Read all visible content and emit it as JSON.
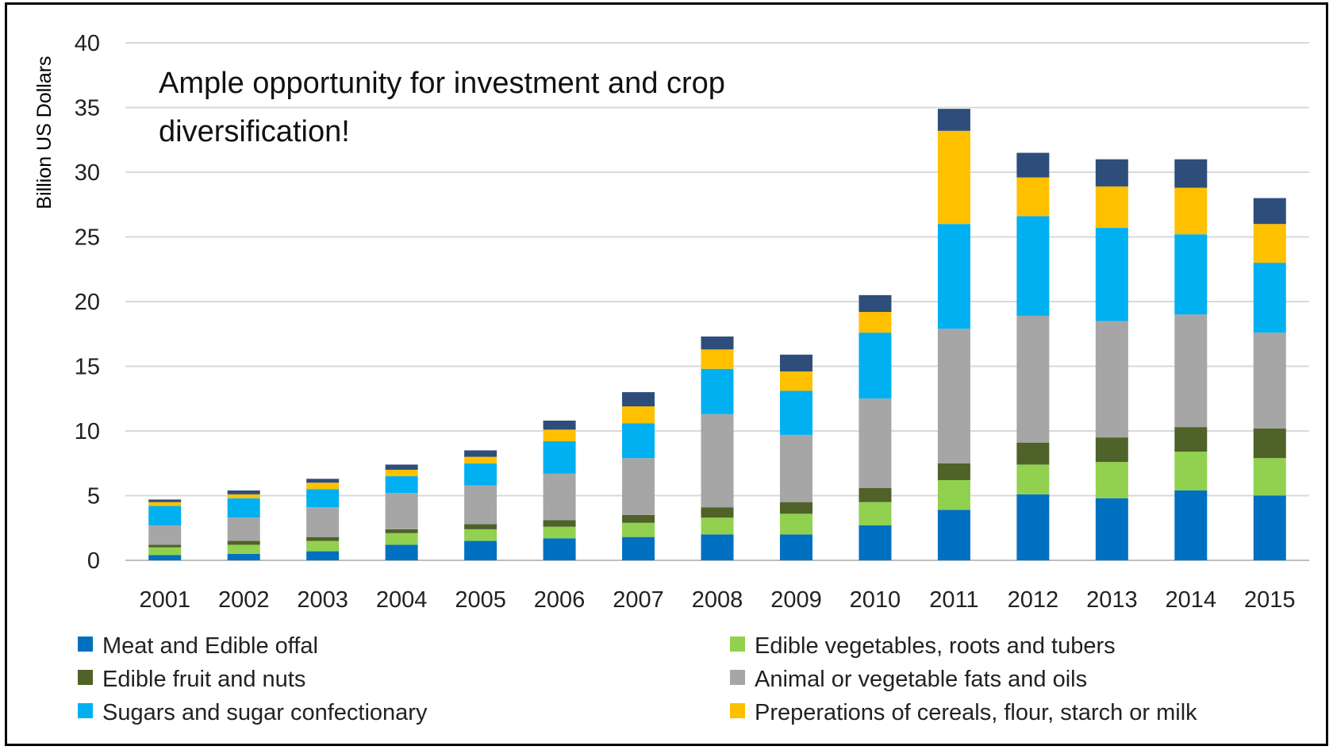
{
  "chart_data": {
    "type": "bar",
    "stacked": true,
    "ylabel": "Billion US Dollars",
    "ylim": [
      0,
      40
    ],
    "yticks": [
      "0",
      "5",
      "10",
      "15",
      "20",
      "25",
      "30",
      "35",
      "40"
    ],
    "grid": true,
    "legend_position": "bottom",
    "annotation": [
      "Ample opportunity for investment and crop",
      "diversification!"
    ],
    "categories": [
      "2001",
      "2002",
      "2003",
      "2004",
      "2005",
      "2006",
      "2007",
      "2008",
      "2009",
      "2010",
      "2011",
      "2012",
      "2013",
      "2014",
      "2015"
    ],
    "series": [
      {
        "name": "Meat and Edible offal",
        "color": "#0070C0",
        "values": [
          0.4,
          0.5,
          0.7,
          1.2,
          1.5,
          1.7,
          1.8,
          2.0,
          2.0,
          2.7,
          3.9,
          5.1,
          4.8,
          5.4,
          5.0
        ]
      },
      {
        "name": "Edible vegetables, roots and tubers",
        "color": "#92D050",
        "values": [
          0.6,
          0.7,
          0.8,
          0.9,
          0.9,
          0.9,
          1.1,
          1.3,
          1.6,
          1.8,
          2.3,
          2.3,
          2.8,
          3.0,
          2.9
        ]
      },
      {
        "name": "Edible fruit and nuts",
        "color": "#4F6228",
        "values": [
          0.2,
          0.3,
          0.3,
          0.3,
          0.4,
          0.5,
          0.6,
          0.8,
          0.9,
          1.1,
          1.3,
          1.7,
          1.9,
          1.9,
          2.3
        ]
      },
      {
        "name": "Animal or vegetable fats and oils",
        "color": "#A6A6A6",
        "values": [
          1.5,
          1.8,
          2.3,
          2.8,
          3.0,
          3.6,
          4.4,
          7.2,
          5.2,
          6.9,
          10.4,
          9.8,
          9.0,
          8.7,
          7.4
        ]
      },
      {
        "name": "Sugars and sugar confectionary",
        "color": "#00B0F0",
        "values": [
          1.5,
          1.5,
          1.4,
          1.3,
          1.7,
          2.5,
          2.7,
          3.5,
          3.4,
          5.1,
          8.1,
          7.7,
          7.2,
          6.2,
          5.4
        ]
      },
      {
        "name": "Preperations of cereals, flour, starch or milk",
        "color": "#FFC000",
        "values": [
          0.3,
          0.3,
          0.5,
          0.5,
          0.5,
          0.9,
          1.3,
          1.5,
          1.5,
          1.6,
          7.2,
          3.0,
          3.2,
          3.6,
          3.0
        ]
      },
      {
        "name": "",
        "color": "#2E4D7A",
        "values": [
          0.2,
          0.3,
          0.3,
          0.4,
          0.5,
          0.7,
          1.1,
          1.0,
          1.3,
          1.3,
          1.7,
          1.9,
          2.1,
          2.2,
          2.0
        ]
      }
    ]
  }
}
